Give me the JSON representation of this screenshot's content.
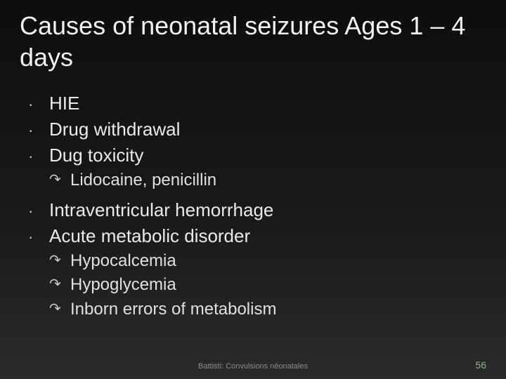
{
  "slide": {
    "background_gradient": [
      "#0d0d0d",
      "#1a1a1a",
      "#2a2a2a"
    ],
    "title": "Causes of neonatal seizures Ages 1 – 4 days",
    "title_fontsize": 36,
    "title_color": "#f2f2f2",
    "bullets": [
      {
        "level": 1,
        "text": "HIE"
      },
      {
        "level": 1,
        "text": "Drug withdrawal"
      },
      {
        "level": 1,
        "text": "Dug toxicity"
      },
      {
        "level": 2,
        "text": "Lidocaine, penicillin"
      },
      {
        "level": 1,
        "text": "Intraventricular hemorrhage"
      },
      {
        "level": 1,
        "text": "Acute metabolic disorder"
      },
      {
        "level": 2,
        "text": "Hypocalcemia"
      },
      {
        "level": 2,
        "text": "Hypoglycemia"
      },
      {
        "level": 2,
        "text": "Inborn errors of metabolism"
      }
    ],
    "bullet_l1_fontsize": 26,
    "bullet_l2_fontsize": 24,
    "bullet_l1_marker": "·",
    "bullet_l2_marker": "↷",
    "text_color": "#eaeaea",
    "footer_center": "Battisti: Convulsions néonatales",
    "footer_center_color": "#8b8b8b",
    "footer_center_fontsize": 11,
    "page_number": "56",
    "page_number_color": "#8fb58e",
    "page_number_fontsize": 14
  }
}
